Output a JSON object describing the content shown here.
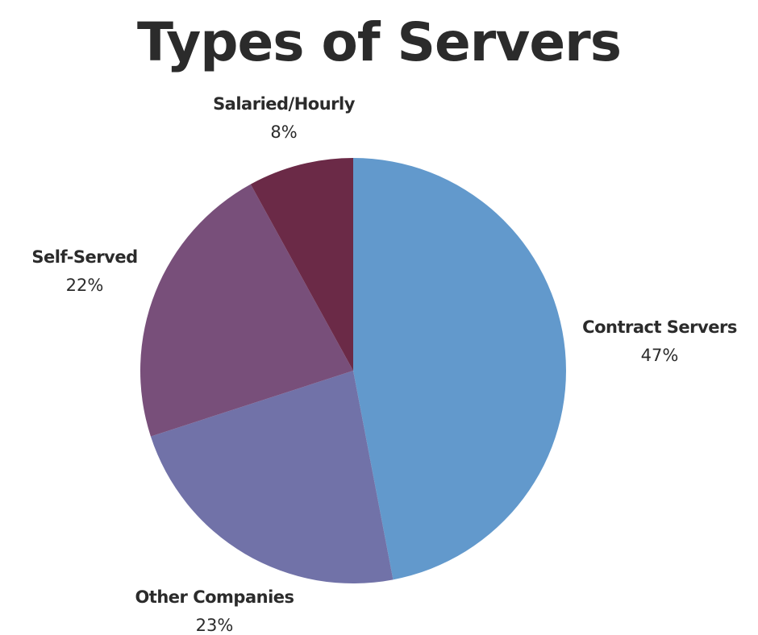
{
  "chart_data": {
    "type": "pie",
    "title": "Types of Servers",
    "slices": [
      {
        "label": "Contract Servers",
        "value": 47,
        "value_label": "47%",
        "color": "#6299CC"
      },
      {
        "label": "Other Companies",
        "value": 23,
        "value_label": "23%",
        "color": "#7172A8"
      },
      {
        "label": "Self-Served",
        "value": 22,
        "value_label": "22%",
        "color": "#784F7A"
      },
      {
        "label": "Salaried/Hourly",
        "value": 8,
        "value_label": "8%",
        "color": "#6B2A47"
      }
    ],
    "start_angle": "12 o'clock",
    "direction": "clockwise",
    "legend": "none"
  }
}
